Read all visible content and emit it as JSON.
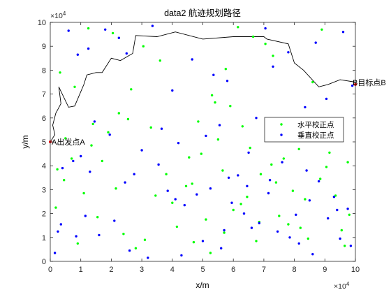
{
  "chart_data": {
    "type": "scatter",
    "title": "data2 航迹规划路径",
    "xlabel": "x/m",
    "ylabel": "y/m",
    "x_multiplier_label": "×10",
    "x_multiplier_exp": "4",
    "y_multiplier_label": "×10",
    "y_multiplier_exp": "4",
    "xlim": [
      0,
      100000
    ],
    "ylim": [
      0,
      100000
    ],
    "xticks": [
      0,
      10000,
      20000,
      30000,
      40000,
      50000,
      60000,
      70000,
      80000,
      90000,
      100000
    ],
    "xtick_labels": [
      "0",
      "1",
      "2",
      "3",
      "4",
      "5",
      "6",
      "7",
      "8",
      "9",
      "10"
    ],
    "yticks": [
      0,
      10000,
      20000,
      30000,
      40000,
      50000,
      60000,
      70000,
      80000,
      90000,
      100000
    ],
    "ytick_labels": [
      "0",
      "1",
      "2",
      "3",
      "4",
      "5",
      "6",
      "7",
      "8",
      "9",
      "10"
    ],
    "grid": false,
    "legend_position": "right",
    "legend": [
      {
        "label": "水平校正点",
        "color": "#00ff00"
      },
      {
        "label": "垂直校正点",
        "color": "#0000ff"
      }
    ],
    "annotations": [
      {
        "text": "A出发点A",
        "x": 0,
        "y": 50000
      },
      {
        "text": "B目标点B",
        "x": 100000,
        "y": 74000
      }
    ],
    "path": {
      "color": "#000000",
      "x": [
        0,
        1500,
        800,
        1800,
        3500,
        2800,
        6000,
        8000,
        11000,
        12000,
        15000,
        17000,
        20000,
        23000,
        27000,
        28000,
        35000,
        41000,
        50000,
        60000,
        70000,
        71000,
        78000,
        80000,
        83000,
        88000,
        91000,
        95000,
        100000
      ],
      "y": [
        50000,
        53000,
        57000,
        62000,
        66000,
        73000,
        64500,
        65000,
        74000,
        78000,
        79000,
        79000,
        85000,
        84000,
        87000,
        94500,
        94000,
        96000,
        93000,
        94000,
        94000,
        93000,
        91000,
        83000,
        80000,
        73000,
        74000,
        76000,
        75000
      ]
    },
    "series": [
      {
        "name": "水平校正点",
        "color": "#00ff00",
        "x": [
          3200,
          8000,
          12500,
          20500,
          30500,
          53000,
          61500,
          66500,
          70500,
          86000,
          89000,
          73000,
          22500,
          14000,
          5000,
          2300,
          45500,
          48500,
          54000,
          57500,
          59000,
          36000,
          26500,
          13500,
          33000,
          55000,
          63000,
          76500,
          81500,
          93500,
          97500,
          98000,
          69000,
          64500,
          78000,
          11000,
          1800,
          17000,
          24000,
          31000,
          40000,
          44500,
          51000,
          60000,
          67500,
          74000,
          83500,
          90500,
          95500,
          4500,
          9000,
          15500,
          21500,
          28000,
          34500,
          41500,
          46500,
          52500,
          57000,
          62500,
          68500,
          72500,
          79500,
          84500,
          91500,
          96500,
          7000,
          19000,
          38000,
          49500,
          56500,
          65500,
          75000,
          88500,
          25500,
          47000,
          82000
        ],
        "y": [
          79000,
          73000,
          97500,
          95500,
          90000,
          69500,
          98000,
          94000,
          91000,
          75000,
          97000,
          86000,
          62000,
          57500,
          51500,
          38500,
          43500,
          58500,
          66500,
          80500,
          65000,
          84000,
          72000,
          48500,
          56000,
          51000,
          56500,
          43000,
          47000,
          27500,
          41500,
          19500,
          36500,
          27000,
          15500,
          28500,
          22500,
          42000,
          11500,
          9000,
          24500,
          31500,
          17500,
          21500,
          8500,
          33000,
          26000,
          39500,
          13000,
          34000,
          7500,
          18500,
          30500,
          5500,
          27500,
          14500,
          32500,
          3500,
          12000,
          24000,
          16500,
          40500,
          29500,
          9500,
          45500,
          6500,
          43000,
          54000,
          36500,
          45000,
          38000,
          47500,
          19000,
          34500,
          59500,
          8000,
          14000
        ]
      },
      {
        "name": "垂直校正点",
        "color": "#0000ff",
        "x": [
          6000,
          9000,
          12500,
          18000,
          22500,
          25000,
          33500,
          40000,
          46500,
          53500,
          58000,
          70500,
          73000,
          78000,
          87000,
          96000,
          99000,
          90500,
          83500,
          67500,
          55500,
          51000,
          42000,
          36500,
          30000,
          19500,
          14500,
          10000,
          7500,
          4000,
          1500,
          61500,
          64500,
          71500,
          76000,
          84000,
          88000,
          93000,
          97500,
          80500,
          68500,
          57000,
          44000,
          38500,
          27500,
          21000,
          16000,
          11500,
          3500,
          8500,
          48000,
          59500,
          63500,
          74500,
          81500,
          91000,
          95000,
          98500,
          26000,
          32000,
          43000,
          50000,
          56000,
          66000,
          78500,
          86000,
          94000,
          2500,
          13000,
          24500,
          35500,
          41000,
          52500,
          58500,
          65000,
          72000,
          85000
        ],
        "y": [
          96500,
          86500,
          89000,
          97000,
          93500,
          87000,
          98500,
          71500,
          84500,
          78000,
          75500,
          97500,
          81500,
          87500,
          91500,
          96000,
          73500,
          68000,
          64500,
          60000,
          57000,
          52500,
          49500,
          55500,
          46500,
          53000,
          58500,
          44000,
          42000,
          39000,
          3500,
          36000,
          31500,
          28500,
          41500,
          38000,
          33500,
          27000,
          22000,
          19500,
          16000,
          13000,
          23500,
          29500,
          36500,
          17000,
          11000,
          19000,
          15500,
          10500,
          28000,
          24500,
          20000,
          12500,
          7500,
          18000,
          9500,
          6500,
          4500,
          1500,
          2500,
          8500,
          5500,
          14000,
          10000,
          3000,
          21500,
          12500,
          37500,
          33000,
          40500,
          26000,
          30500,
          35000,
          45500,
          34000,
          25500
        ]
      }
    ]
  }
}
